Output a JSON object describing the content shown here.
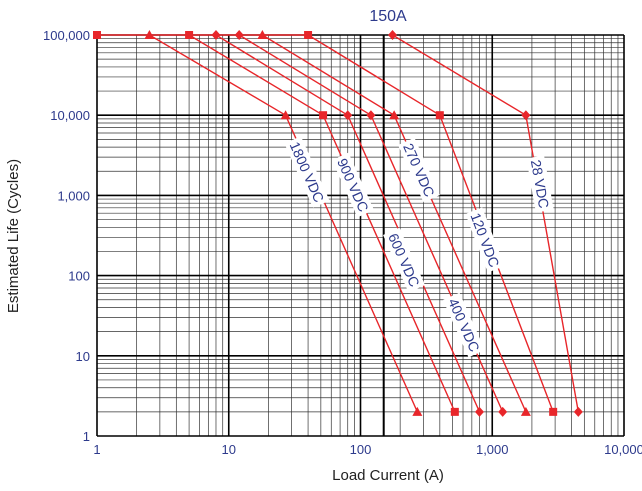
{
  "chart_data": {
    "type": "line",
    "title": "150A",
    "xlabel": "Load Current (A)",
    "ylabel": "Estimated Life (Cycles)",
    "x_scale": "log",
    "y_scale": "log",
    "xlim": [
      1,
      10000
    ],
    "ylim": [
      1,
      100000
    ],
    "x_ticks": [
      1,
      10,
      100,
      1000,
      10000
    ],
    "x_tick_labels": [
      "1",
      "10",
      "100",
      "1,000",
      "10,000"
    ],
    "y_ticks": [
      1,
      10,
      100,
      1000,
      10000,
      100000
    ],
    "y_tick_labels": [
      "1",
      "10",
      "100",
      "1,000",
      "10,000",
      "100,000"
    ],
    "grid": true,
    "legend": "none",
    "series_color": "#e8262a",
    "label_color": "#2d3a8c",
    "series": [
      {
        "name": "1800 VDC",
        "marker": "triangle",
        "x": [
          2.5,
          27,
          270
        ],
        "y": [
          100000,
          10000,
          2
        ]
      },
      {
        "name": "900 VDC",
        "marker": "square",
        "x": [
          5,
          52,
          520
        ],
        "y": [
          100000,
          10000,
          2
        ]
      },
      {
        "name": "600 VDC",
        "marker": "diamond",
        "x": [
          8,
          80,
          800
        ],
        "y": [
          100000,
          10000,
          2
        ]
      },
      {
        "name": "400 VDC",
        "marker": "diamond",
        "x": [
          12,
          120,
          1200
        ],
        "y": [
          100000,
          10000,
          2
        ]
      },
      {
        "name": "270 VDC",
        "marker": "triangle",
        "x": [
          18,
          180,
          1800
        ],
        "y": [
          100000,
          10000,
          2
        ]
      },
      {
        "name": "120 VDC",
        "marker": "square",
        "x": [
          1,
          40,
          400,
          2900
        ],
        "y": [
          100000,
          100000,
          10000,
          2
        ]
      },
      {
        "name": "28 VDC",
        "marker": "diamond",
        "x": [
          175,
          1800,
          4500
        ],
        "y": [
          100000,
          10000,
          2
        ]
      }
    ]
  }
}
